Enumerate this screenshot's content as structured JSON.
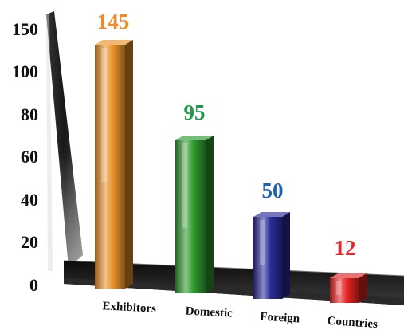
{
  "chart_data": {
    "type": "bar",
    "title": "",
    "xlabel": "",
    "ylabel": "",
    "y_ticks": [
      "0",
      "20",
      "40",
      "60",
      "80",
      "100",
      "150"
    ],
    "categories": [
      "Exhibitors",
      "Domestic",
      "Foreign",
      "Countries"
    ],
    "values": [
      145,
      95,
      50,
      12
    ],
    "value_labels": [
      "145",
      "95",
      "50",
      "12"
    ],
    "bar_colors": [
      "#e8902a",
      "#2f9a2f",
      "#2b2b99",
      "#e52222"
    ],
    "label_colors": [
      "#f08a26",
      "#1f9a4a",
      "#1d63b0",
      "#e8262a"
    ],
    "grid": false,
    "legend": "none"
  }
}
